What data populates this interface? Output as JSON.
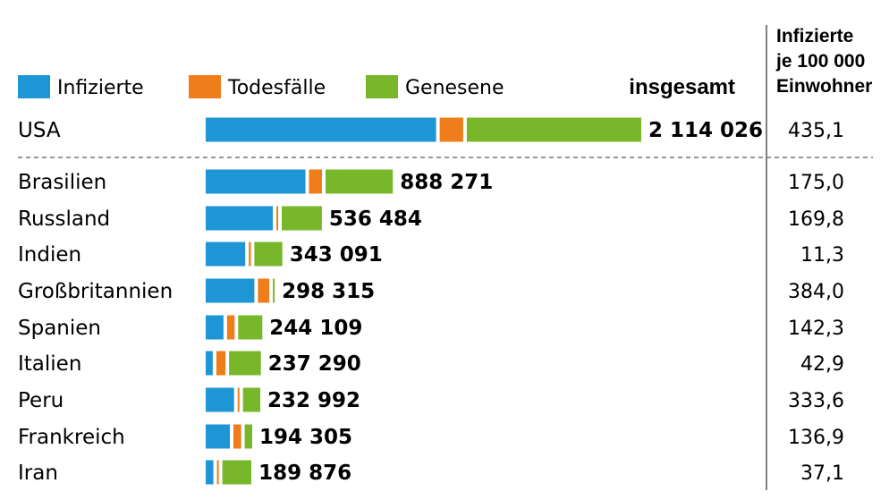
{
  "chart_data": {
    "type": "bar",
    "stacked": true,
    "legend_placement": "top-left",
    "series": [
      {
        "name": "Infizierte",
        "color": "#1e96d6"
      },
      {
        "name": "Todesfälle",
        "color": "#ef7d1a"
      },
      {
        "name": "Genesene",
        "color": "#78b72a"
      }
    ],
    "total_header": "insgesamt",
    "rate_header": [
      "Infizierte",
      "je 100 000",
      "Einwohner"
    ],
    "rows": [
      {
        "country": "USA",
        "total_label": "2 114 026",
        "rate_label": "435,1",
        "infected": 1137000,
        "deaths": 116000,
        "recovered": 861000
      },
      {
        "country": "Brasilien",
        "total_label": "888 271",
        "rate_label": "175,0",
        "infected": 492000,
        "deaths": 64000,
        "recovered": 332000
      },
      {
        "country": "Russland",
        "total_label": "536 484",
        "rate_label": "169,8",
        "infected": 331000,
        "deaths": 7000,
        "recovered": 198000
      },
      {
        "country": "Indien",
        "total_label": "343 091",
        "rate_label": "11,3",
        "infected": 195000,
        "deaths": 10000,
        "recovered": 138000
      },
      {
        "country": "Großbritannien",
        "total_label": "298 315",
        "rate_label": "384,0",
        "infected": 240000,
        "deaths": 56000,
        "recovered": 2000
      },
      {
        "country": "Spanien",
        "total_label": "244 109",
        "rate_label": "142,3",
        "infected": 88000,
        "deaths": 37000,
        "recovered": 119000
      },
      {
        "country": "Italien",
        "total_label": "237 290",
        "rate_label": "42,9",
        "infected": 35000,
        "deaths": 45000,
        "recovered": 157000
      },
      {
        "country": "Peru",
        "total_label": "232 992",
        "rate_label": "333,6",
        "infected": 140000,
        "deaths": 8000,
        "recovered": 85000
      },
      {
        "country": "Frankreich",
        "total_label": "194 305",
        "rate_label": "136,9",
        "infected": 119000,
        "deaths": 38000,
        "recovered": 37000
      },
      {
        "country": "Iran",
        "total_label": "189 876",
        "rate_label": "37,1",
        "infected": 38000,
        "deaths": 9000,
        "recovered": 143000
      }
    ]
  }
}
